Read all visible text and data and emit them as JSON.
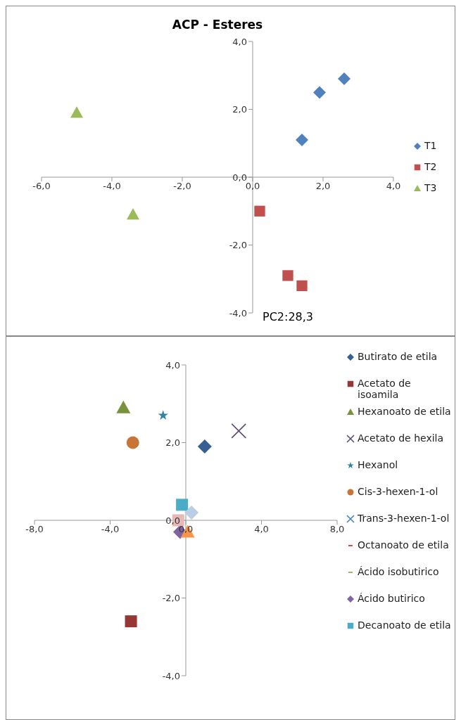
{
  "chart_data": [
    {
      "type": "scatter",
      "title": "ACP - Esteres",
      "annotations": [
        "PC2:28,3"
      ],
      "legend": "right",
      "grid": false,
      "xlim": [
        -6,
        4
      ],
      "xticks": [
        {
          "value": -6,
          "label": "-6,0"
        },
        {
          "value": -4,
          "label": "-4,0"
        },
        {
          "value": -2,
          "label": "-2,0"
        },
        {
          "value": 0,
          "label": "0,0"
        },
        {
          "value": 2,
          "label": "2,0"
        },
        {
          "value": 4,
          "label": "4,0"
        }
      ],
      "ylim": [
        -4,
        4
      ],
      "yticks": [
        {
          "value": -4,
          "label": "-4,0"
        },
        {
          "value": -2,
          "label": "-2,0"
        },
        {
          "value": 0,
          "label": "0,0"
        },
        {
          "value": 2,
          "label": "2,0"
        },
        {
          "value": 4,
          "label": "4,0"
        }
      ],
      "series": [
        {
          "name": "T1",
          "color": "#4f81bd",
          "marker": "diamond",
          "x": [
            1.4,
            1.9,
            2.6
          ],
          "values": [
            1.1,
            2.5,
            2.9
          ]
        },
        {
          "name": "T2",
          "color": "#c0504d",
          "marker": "square",
          "x": [
            0.2,
            1.0,
            1.4
          ],
          "values": [
            -1.0,
            -2.9,
            -3.2
          ]
        },
        {
          "name": "T3",
          "color": "#9bbb59",
          "marker": "triangle",
          "x": [
            -5.0,
            -3.4
          ],
          "values": [
            1.9,
            -1.1
          ]
        }
      ]
    },
    {
      "type": "scatter",
      "legend": "right",
      "grid": false,
      "xlim": [
        -8,
        8
      ],
      "xticks": [
        {
          "value": -8,
          "label": "-8,0"
        },
        {
          "value": -4,
          "label": "-4,0"
        },
        {
          "value": 0,
          "label": "0,0"
        },
        {
          "value": 4,
          "label": "4,0"
        },
        {
          "value": 8,
          "label": "8,0"
        }
      ],
      "ylim": [
        -4,
        4
      ],
      "yticks": [
        {
          "value": -4,
          "label": "-4,0"
        },
        {
          "value": -2,
          "label": "-2,0"
        },
        {
          "value": 0,
          "label": "0,0"
        },
        {
          "value": 2,
          "label": "2,0"
        },
        {
          "value": 4,
          "label": "4,0"
        }
      ],
      "series": [
        {
          "name": "Butirato de etila",
          "color": "#376092",
          "marker": "diamond",
          "x": [
            1.0
          ],
          "values": [
            1.9
          ]
        },
        {
          "name": "Acetato de isoamila",
          "color": "#953735",
          "marker": "square",
          "x": [
            -2.9
          ],
          "values": [
            -2.6
          ]
        },
        {
          "name": "Hexanoato de etila",
          "color": "#77933c",
          "marker": "triangle",
          "x": [
            -3.3
          ],
          "values": [
            2.9
          ]
        },
        {
          "name": "Acetato de hexila",
          "color": "#604a7b",
          "marker": "cross",
          "x": [
            2.8
          ],
          "values": [
            2.3
          ]
        },
        {
          "name": "Hexanol",
          "color": "#31859c",
          "marker": "star",
          "x": [
            -1.2
          ],
          "values": [
            2.7
          ]
        },
        {
          "name": "Cis-3-hexen-1-ol",
          "color": "#c77434",
          "marker": "circle",
          "x": [
            -2.8
          ],
          "values": [
            2.0
          ]
        },
        {
          "name": "Trans-3-hexen-1-ol",
          "color": "#4f81bd",
          "marker": "cross",
          "x": [
            null
          ],
          "values": [
            null
          ]
        },
        {
          "name": "Octanoato de etila",
          "color": "#c0504d",
          "marker": "none",
          "x": [
            null
          ],
          "values": [
            null
          ]
        },
        {
          "name": "Ácido isobutirico",
          "color": "#9bbb59",
          "marker": "none",
          "x": [
            null
          ],
          "values": [
            null
          ]
        },
        {
          "name": "Ácido butirico",
          "color": "#8064a2",
          "marker": "diamond",
          "x": [
            -0.3
          ],
          "values": [
            -0.3
          ]
        },
        {
          "name": "Decanoato de etila",
          "color": "#4bacc6",
          "marker": "square",
          "x": [
            -0.2
          ],
          "values": [
            0.4
          ]
        },
        {
          "color": "#b9cde5",
          "marker": "diamond",
          "x": [
            0.3
          ],
          "values": [
            0.2
          ]
        },
        {
          "color": "#e6b9b8",
          "marker": "square",
          "x": [
            -0.4
          ],
          "values": [
            0.0
          ]
        },
        {
          "color": "#f79646",
          "marker": "triangle",
          "x": [
            0.1
          ],
          "values": [
            -0.3
          ]
        }
      ]
    }
  ]
}
